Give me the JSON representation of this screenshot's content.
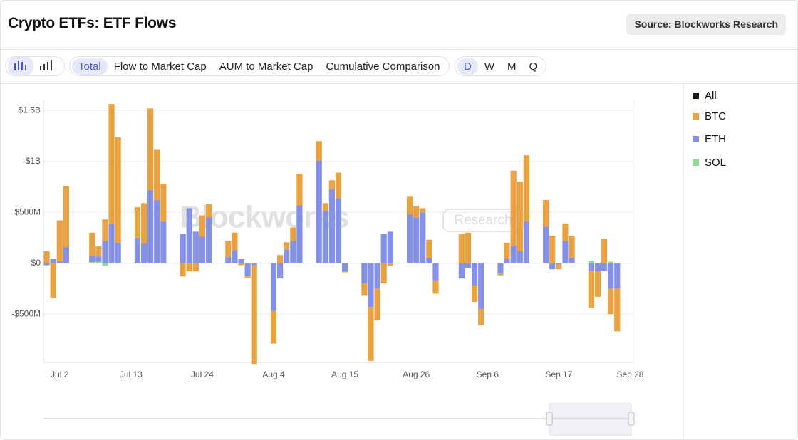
{
  "header": {
    "title": "Crypto ETFs: ETF Flows",
    "source": "Source: Blockworks Research"
  },
  "toolbar": {
    "tabs": [
      "Total",
      "Flow to Market Cap",
      "AUM to Market Cap",
      "Cumulative Comparison"
    ],
    "periods": [
      "D",
      "W",
      "M",
      "Q"
    ]
  },
  "watermark": {
    "brand": "Blockworks",
    "tag": "Research"
  },
  "chart_data": {
    "type": "stacked_bar",
    "categories": [
      null,
      null,
      "Jul 2",
      null,
      null,
      null,
      null,
      null,
      null,
      null,
      null,
      null,
      null,
      "Jul 13",
      null,
      null,
      null,
      null,
      null,
      null,
      null,
      null,
      null,
      null,
      "Jul 24",
      null,
      null,
      null,
      null,
      null,
      null,
      null,
      null,
      null,
      null,
      "Aug 4",
      null,
      null,
      null,
      null,
      null,
      null,
      null,
      null,
      null,
      null,
      "Aug 15",
      null,
      null,
      null,
      null,
      null,
      null,
      null,
      null,
      null,
      null,
      "Aug 26",
      null,
      null,
      null,
      null,
      null,
      null,
      null,
      null,
      null,
      null,
      "Sep 6",
      null,
      null,
      null,
      null,
      null,
      null,
      null,
      null,
      null,
      null,
      "Sep 17",
      null,
      null,
      null,
      null,
      null,
      null,
      null,
      null,
      null,
      null,
      "Sep 28"
    ],
    "total_legend": {
      "name": "All",
      "color": "#1a1a1a"
    },
    "series": [
      {
        "name": "BTC",
        "color": "#e9a23f",
        "values": [
          120000000.0,
          -340000000.0,
          400000000.0,
          605000000.0,
          null,
          null,
          null,
          230000000.0,
          100000000.0,
          210000000.0,
          1180000000.0,
          1040000000.0,
          null,
          null,
          300000000.0,
          400000000.0,
          800000000.0,
          500000000.0,
          370000000.0,
          null,
          null,
          -130000000.0,
          -80000000.0,
          -80000000.0,
          210000000.0,
          130000000.0,
          null,
          null,
          160000000.0,
          170000000.0,
          -20000000.0,
          -20000000.0,
          -970000000.0,
          null,
          null,
          -320000000.0,
          80000000.0,
          70000000.0,
          130000000.0,
          310000000.0,
          null,
          null,
          190000000.0,
          70000000.0,
          85000000.0,
          250000000.0,
          -10000000.0,
          null,
          null,
          -120000000.0,
          -530000000.0,
          -310000000.0,
          -200000000.0,
          -25000000.0,
          null,
          null,
          180000000.0,
          110000000.0,
          40000000.0,
          180000000.0,
          -130000000.0,
          null,
          null,
          null,
          290000000.0,
          300000000.0,
          -160000000.0,
          -160000000.0,
          null,
          null,
          -20000000.0,
          160000000.0,
          740000000.0,
          680000000.0,
          650000000.0,
          null,
          null,
          260000000.0,
          270000000.0,
          -50000000.0,
          170000000.0,
          220000000.0,
          null,
          null,
          -360000000.0,
          -250000000.0,
          240000000.0,
          -250000000.0,
          -420000000.0,
          null,
          null
        ]
      },
      {
        "name": "ETH",
        "color": "#8491e6",
        "values": [
          -20000000.0,
          40000000.0,
          20000000.0,
          155000000.0,
          null,
          null,
          null,
          60000000.0,
          50000000.0,
          220000000.0,
          380000000.0,
          200000000.0,
          null,
          null,
          250000000.0,
          190000000.0,
          720000000.0,
          620000000.0,
          410000000.0,
          null,
          null,
          290000000.0,
          540000000.0,
          310000000.0,
          260000000.0,
          450000000.0,
          null,
          null,
          60000000.0,
          130000000.0,
          40000000.0,
          -130000000.0,
          -20000000.0,
          null,
          null,
          -470000000.0,
          -150000000.0,
          135000000.0,
          220000000.0,
          570000000.0,
          null,
          null,
          1010000000.0,
          520000000.0,
          730000000.0,
          640000000.0,
          -80000000.0,
          null,
          null,
          -200000000.0,
          -430000000.0,
          -250000000.0,
          290000000.0,
          310000000.0,
          null,
          null,
          480000000.0,
          450000000.0,
          500000000.0,
          50000000.0,
          -170000000.0,
          null,
          null,
          null,
          -150000000.0,
          -50000000.0,
          -220000000.0,
          -450000000.0,
          null,
          null,
          -100000000.0,
          40000000.0,
          170000000.0,
          120000000.0,
          410000000.0,
          null,
          null,
          360000000.0,
          -60000000.0,
          -10000000.0,
          220000000.0,
          50000000.0,
          null,
          null,
          -75000000.0,
          -80000000.0,
          -75000000.0,
          -250000000.0,
          -250000000.0,
          null,
          null
        ]
      },
      {
        "name": "SOL",
        "color": "#93d991",
        "values": [
          0,
          0,
          0,
          0,
          null,
          null,
          null,
          10000000.0,
          15000000.0,
          -25000000.0,
          5000000.0,
          0,
          null,
          null,
          0,
          0,
          0,
          0,
          0,
          null,
          null,
          0,
          0,
          0,
          0,
          0,
          null,
          null,
          0,
          0,
          0,
          0,
          0,
          null,
          null,
          0,
          0,
          0,
          0,
          0,
          null,
          null,
          0,
          0,
          0,
          0,
          0,
          null,
          null,
          0,
          0,
          0,
          0,
          0,
          null,
          null,
          0,
          0,
          0,
          0,
          0,
          null,
          null,
          null,
          0,
          0,
          0,
          0,
          null,
          null,
          0,
          0,
          0,
          0,
          0,
          null,
          null,
          0,
          0,
          0,
          0,
          0,
          null,
          null,
          20000000.0,
          0,
          0,
          15000000.0,
          0,
          null,
          null
        ]
      }
    ],
    "ylim": [
      -975000000.0,
      1600000000.0
    ],
    "yticks": [
      {
        "value": -500000000.0,
        "label": "-$500M"
      },
      {
        "value": 0,
        "label": "$0"
      },
      {
        "value": 500000000.0,
        "label": "$500M"
      },
      {
        "value": 1000000000.0,
        "label": "$1B"
      },
      {
        "value": 1500000000.0,
        "label": "$1.5B"
      }
    ],
    "grid": true,
    "legend": "right"
  }
}
